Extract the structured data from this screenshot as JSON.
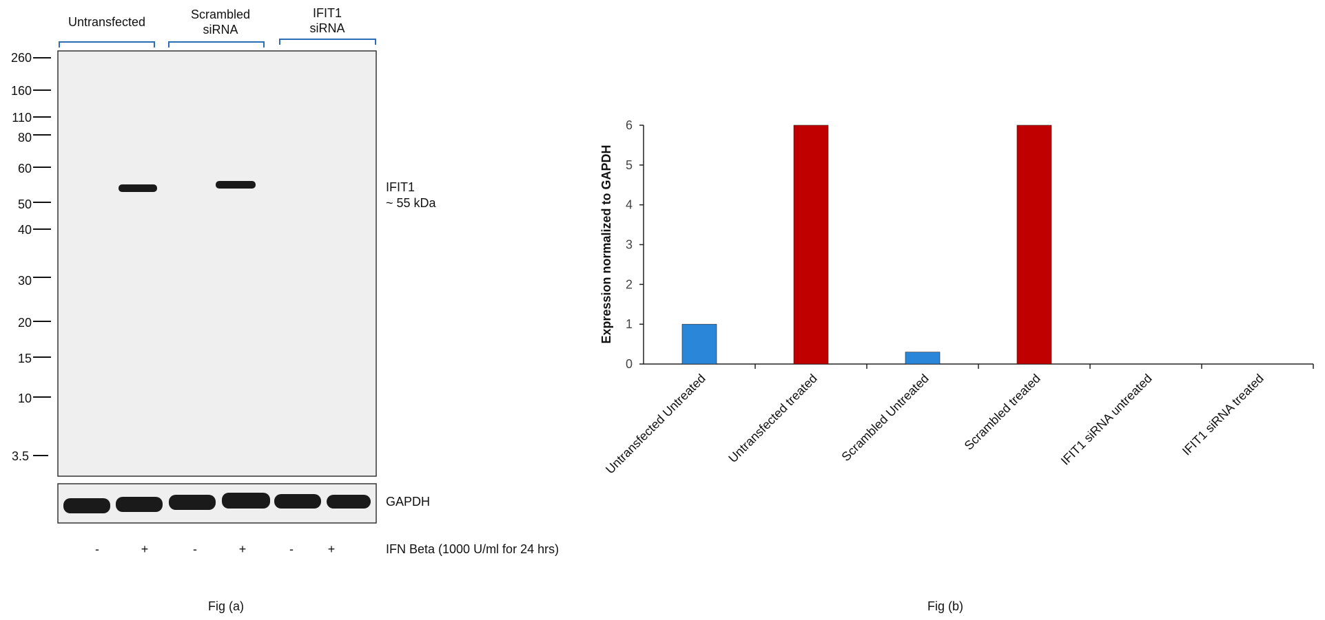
{
  "panel_a": {
    "groups": [
      {
        "line1": "Untransfected",
        "line2": ""
      },
      {
        "line1": "Scrambled",
        "line2": "siRNA"
      },
      {
        "line1": "IFIT1",
        "line2": "siRNA"
      }
    ],
    "markers": [
      "260",
      "160",
      "110",
      "80",
      "60",
      "50",
      "40",
      "30",
      "20",
      "15",
      "10",
      "3.5"
    ],
    "band_label_1": "IFIT1",
    "band_label_2": "~ 55 kDa",
    "loading_label": "GAPDH",
    "treatment": [
      "-",
      "+",
      "-",
      "+",
      "-",
      "+"
    ],
    "treatment_label": "IFN Beta (1000 U/ml for 24 hrs)",
    "caption": "Fig (a)",
    "colors": {
      "blot_bg": "#efefef",
      "band": "#1a1a1a",
      "bracket": "#2a6db5"
    }
  },
  "panel_b": {
    "caption": "Fig (b)"
  },
  "chart_data": {
    "type": "bar",
    "categories": [
      "Untransfected Untreated",
      "Untransfected treated",
      "Scrambled Untreated",
      "Scrambled treated",
      "IFIT1 siRNA untreated",
      "IFIT1 siRNA treated"
    ],
    "values": [
      1,
      6,
      0.3,
      6,
      0,
      0
    ],
    "bar_colors": [
      "#2a86d8",
      "#c00000",
      "#2a86d8",
      "#c00000",
      "#2a86d8",
      "#c00000"
    ],
    "ylabel": "Expression normalized to GAPDH",
    "xlabel": "",
    "title": "",
    "ylim": [
      0,
      6
    ],
    "yticks": [
      "0",
      "1",
      "2",
      "3",
      "4",
      "5",
      "6"
    ],
    "grid": false
  }
}
